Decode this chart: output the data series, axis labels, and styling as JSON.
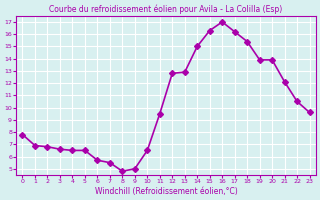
{
  "x": [
    0,
    1,
    2,
    3,
    4,
    5,
    6,
    7,
    8,
    9,
    10,
    11,
    12,
    13,
    14,
    15,
    16,
    17,
    18,
    19,
    20,
    21,
    22,
    23
  ],
  "y": [
    7.8,
    6.9,
    6.8,
    6.6,
    6.5,
    6.5,
    5.7,
    5.5,
    4.8,
    5.0,
    6.5,
    9.5,
    12.8,
    12.9,
    15.0,
    16.3,
    17.0,
    16.2,
    15.4,
    13.9,
    13.9,
    12.1,
    10.5,
    9.6
  ],
  "line_color": "#aa00aa",
  "marker": "D",
  "markersize": 3,
  "linewidth": 1.2,
  "bg_color": "#d8f0f0",
  "grid_color": "#ffffff",
  "xlabel": "Windchill (Refroidissement éolien,°C)",
  "xlabel_color": "#aa00aa",
  "tick_color": "#aa00aa",
  "xlim": [
    -0.5,
    23.5
  ],
  "ylim": [
    4.5,
    17.5
  ],
  "yticks": [
    5,
    6,
    7,
    8,
    9,
    10,
    11,
    12,
    13,
    14,
    15,
    16,
    17
  ],
  "xticks": [
    0,
    1,
    2,
    3,
    4,
    5,
    6,
    7,
    8,
    9,
    10,
    11,
    12,
    13,
    14,
    15,
    16,
    17,
    18,
    19,
    20,
    21,
    22,
    23
  ],
  "title": "Courbe du refroidissement éolien pour Avila - La Colilla (Esp)",
  "title_color": "#aa00aa",
  "title_fontsize": 5.5
}
